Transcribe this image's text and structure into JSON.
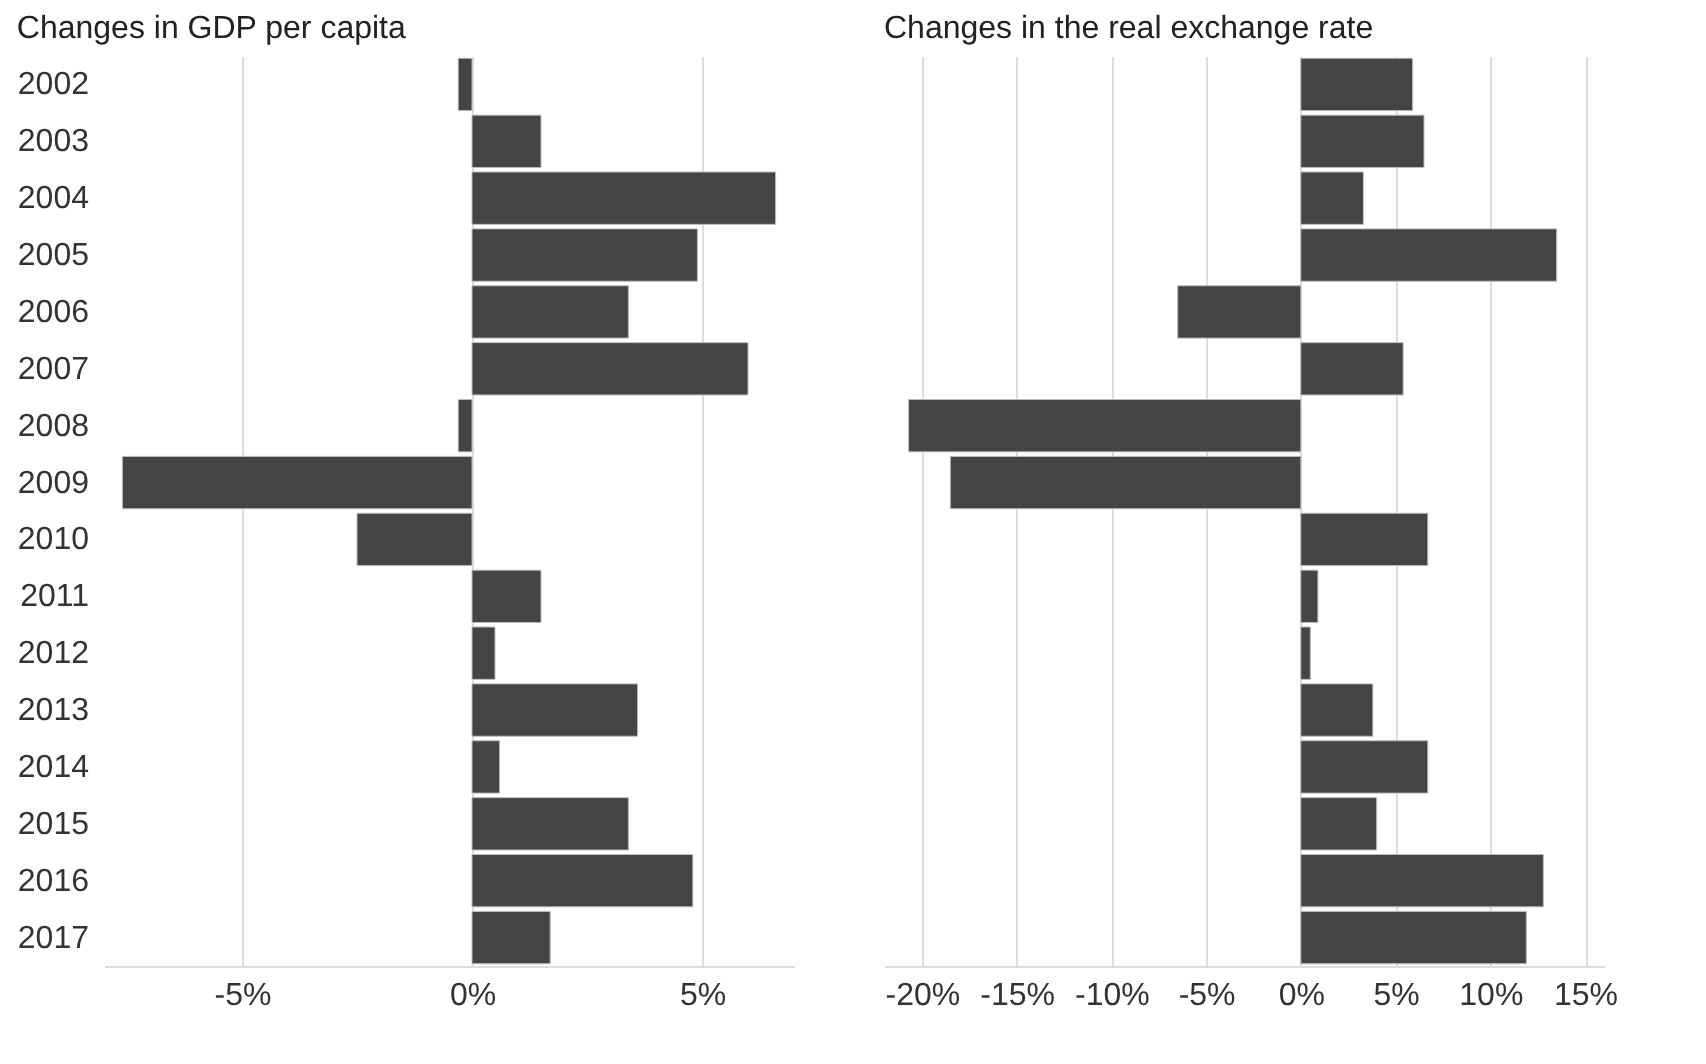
{
  "chart_data": [
    {
      "type": "bar",
      "orientation": "horizontal",
      "title": "Changes in GDP per capita",
      "categories": [
        "2002",
        "2003",
        "2004",
        "2005",
        "2006",
        "2007",
        "2008",
        "2009",
        "2010",
        "2011",
        "2012",
        "2013",
        "2014",
        "2015",
        "2016",
        "2017"
      ],
      "values": [
        -0.3,
        1.5,
        6.6,
        4.9,
        3.4,
        6.0,
        -0.3,
        -7.6,
        -2.5,
        1.5,
        0.5,
        3.6,
        0.6,
        3.4,
        4.8,
        1.7
      ],
      "color": "#444444",
      "xlim": [
        -8,
        7
      ],
      "xticks": [
        {
          "value": -5,
          "label": "-5%"
        },
        {
          "value": 0,
          "label": "0%"
        },
        {
          "value": 5,
          "label": "5%"
        }
      ],
      "grid": "x"
    },
    {
      "type": "bar",
      "orientation": "horizontal",
      "title": "Changes in the real exchange rate",
      "categories": [
        "2002",
        "2003",
        "2004",
        "2005",
        "2006",
        "2007",
        "2008",
        "2009",
        "2010",
        "2011",
        "2012",
        "2013",
        "2014",
        "2015",
        "2016",
        "2017"
      ],
      "values": [
        5.9,
        6.5,
        3.3,
        13.5,
        -6.5,
        5.4,
        -20.7,
        -18.5,
        6.7,
        0.9,
        0.5,
        3.8,
        6.7,
        4.0,
        12.8,
        11.9
      ],
      "color": "#444444",
      "xlim": [
        -22,
        16
      ],
      "xticks": [
        {
          "value": -20,
          "label": "-20%"
        },
        {
          "value": -15,
          "label": "-15%"
        },
        {
          "value": -10,
          "label": "-10%"
        },
        {
          "value": -5,
          "label": "-5%"
        },
        {
          "value": 0,
          "label": "0%"
        },
        {
          "value": 5,
          "label": "5%"
        },
        {
          "value": 10,
          "label": "10%"
        },
        {
          "value": 15,
          "label": "15%"
        }
      ],
      "grid": "x",
      "tick_labels": "x"
    }
  ]
}
